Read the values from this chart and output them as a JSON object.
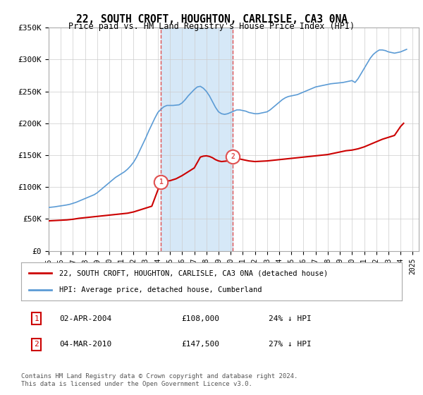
{
  "title": "22, SOUTH CROFT, HOUGHTON, CARLISLE, CA3 0NA",
  "subtitle": "Price paid vs. HM Land Registry's House Price Index (HPI)",
  "ylim": [
    0,
    350000
  ],
  "yticks": [
    0,
    50000,
    100000,
    150000,
    200000,
    250000,
    300000,
    350000
  ],
  "ytick_labels": [
    "£0",
    "£50K",
    "£100K",
    "£150K",
    "£200K",
    "£250K",
    "£300K",
    "£350K"
  ],
  "xlim_start": 1995.0,
  "xlim_end": 2025.5,
  "transaction1_x": 2004.25,
  "transaction1_y": 108000,
  "transaction1_label": "1",
  "transaction1_date": "02-APR-2004",
  "transaction1_price": "£108,000",
  "transaction1_hpi": "24% ↓ HPI",
  "transaction2_x": 2010.17,
  "transaction2_y": 147500,
  "transaction2_label": "2",
  "transaction2_date": "04-MAR-2010",
  "transaction2_price": "£147,500",
  "transaction2_hpi": "27% ↓ HPI",
  "shade_color": "#d6e8f7",
  "dashed_color": "#e05050",
  "red_line_color": "#cc0000",
  "blue_line_color": "#5b9bd5",
  "grid_color": "#cccccc",
  "background_color": "#ffffff",
  "legend_line1": "22, SOUTH CROFT, HOUGHTON, CARLISLE, CA3 0NA (detached house)",
  "legend_line2": "HPI: Average price, detached house, Cumberland",
  "footer": "Contains HM Land Registry data © Crown copyright and database right 2024.\nThis data is licensed under the Open Government Licence v3.0.",
  "hpi_data_x": [
    1995.0,
    1995.25,
    1995.5,
    1995.75,
    1996.0,
    1996.25,
    1996.5,
    1996.75,
    1997.0,
    1997.25,
    1997.5,
    1997.75,
    1998.0,
    1998.25,
    1998.5,
    1998.75,
    1999.0,
    1999.25,
    1999.5,
    1999.75,
    2000.0,
    2000.25,
    2000.5,
    2000.75,
    2001.0,
    2001.25,
    2001.5,
    2001.75,
    2002.0,
    2002.25,
    2002.5,
    2002.75,
    2003.0,
    2003.25,
    2003.5,
    2003.75,
    2004.0,
    2004.25,
    2004.5,
    2004.75,
    2005.0,
    2005.25,
    2005.5,
    2005.75,
    2006.0,
    2006.25,
    2006.5,
    2006.75,
    2007.0,
    2007.25,
    2007.5,
    2007.75,
    2008.0,
    2008.25,
    2008.5,
    2008.75,
    2009.0,
    2009.25,
    2009.5,
    2009.75,
    2010.0,
    2010.25,
    2010.5,
    2010.75,
    2011.0,
    2011.25,
    2011.5,
    2011.75,
    2012.0,
    2012.25,
    2012.5,
    2012.75,
    2013.0,
    2013.25,
    2013.5,
    2013.75,
    2014.0,
    2014.25,
    2014.5,
    2014.75,
    2015.0,
    2015.25,
    2015.5,
    2015.75,
    2016.0,
    2016.25,
    2016.5,
    2016.75,
    2017.0,
    2017.25,
    2017.5,
    2017.75,
    2018.0,
    2018.25,
    2018.5,
    2018.75,
    2019.0,
    2019.25,
    2019.5,
    2019.75,
    2020.0,
    2020.25,
    2020.5,
    2020.75,
    2021.0,
    2021.25,
    2021.5,
    2021.75,
    2022.0,
    2022.25,
    2022.5,
    2022.75,
    2023.0,
    2023.25,
    2023.5,
    2023.75,
    2024.0,
    2024.25,
    2024.5
  ],
  "hpi_data_y": [
    68000,
    68500,
    69000,
    69800,
    70500,
    71200,
    72000,
    73000,
    74500,
    76000,
    78000,
    80000,
    82000,
    84000,
    86000,
    88000,
    91000,
    95000,
    99000,
    103000,
    107000,
    111000,
    115000,
    118000,
    121000,
    124000,
    128000,
    133000,
    139000,
    147000,
    157000,
    167000,
    177000,
    188000,
    198000,
    208000,
    217000,
    222000,
    226000,
    228000,
    228000,
    228000,
    228500,
    229000,
    232000,
    237000,
    243000,
    248000,
    253000,
    257000,
    258000,
    255000,
    250000,
    243000,
    234000,
    225000,
    218000,
    215000,
    214000,
    215000,
    217000,
    219000,
    221000,
    221000,
    220000,
    219000,
    217000,
    216000,
    215000,
    215000,
    216000,
    217000,
    218000,
    221000,
    225000,
    229000,
    233000,
    237000,
    240000,
    242000,
    243000,
    244000,
    245000,
    247000,
    249000,
    251000,
    253000,
    255000,
    257000,
    258000,
    259000,
    260000,
    261000,
    262000,
    262500,
    263000,
    263500,
    264000,
    265000,
    266000,
    267000,
    264000,
    270000,
    278000,
    286000,
    294000,
    302000,
    308000,
    312000,
    315000,
    315000,
    314000,
    312000,
    311000,
    310000,
    311000,
    312000,
    314000,
    316000
  ],
  "property_data_x": [
    1995.0,
    1995.5,
    1996.0,
    1996.5,
    1997.0,
    1997.5,
    1998.0,
    1998.5,
    1999.0,
    1999.5,
    2000.0,
    2000.5,
    2001.0,
    2001.5,
    2002.0,
    2002.5,
    2003.0,
    2003.5,
    2004.25,
    2004.5,
    2005.0,
    2005.5,
    2006.0,
    2006.5,
    2007.0,
    2007.5,
    2007.75,
    2008.0,
    2008.25,
    2008.5,
    2008.75,
    2009.0,
    2009.25,
    2009.5,
    2009.75,
    2010.17,
    2010.5,
    2011.0,
    2011.5,
    2012.0,
    2012.5,
    2013.0,
    2013.5,
    2014.0,
    2014.5,
    2015.0,
    2015.5,
    2016.0,
    2016.5,
    2017.0,
    2017.5,
    2018.0,
    2018.5,
    2019.0,
    2019.5,
    2020.0,
    2020.5,
    2021.0,
    2021.5,
    2022.0,
    2022.5,
    2023.0,
    2023.5,
    2024.0,
    2024.25
  ],
  "property_data_y": [
    47000,
    47500,
    48000,
    48500,
    49500,
    51000,
    52000,
    53000,
    54000,
    55000,
    56000,
    57000,
    58000,
    59000,
    61000,
    64000,
    67000,
    70000,
    108000,
    109000,
    110000,
    113000,
    118000,
    124000,
    130000,
    147000,
    148500,
    149000,
    148000,
    146000,
    143000,
    141000,
    140000,
    140500,
    141000,
    147500,
    145000,
    143000,
    141000,
    140000,
    140500,
    141000,
    142000,
    143000,
    144000,
    145000,
    146000,
    147000,
    148000,
    149000,
    150000,
    151000,
    153000,
    155000,
    157000,
    158000,
    160000,
    163000,
    167000,
    171000,
    175000,
    178000,
    181000,
    195000,
    200000
  ]
}
